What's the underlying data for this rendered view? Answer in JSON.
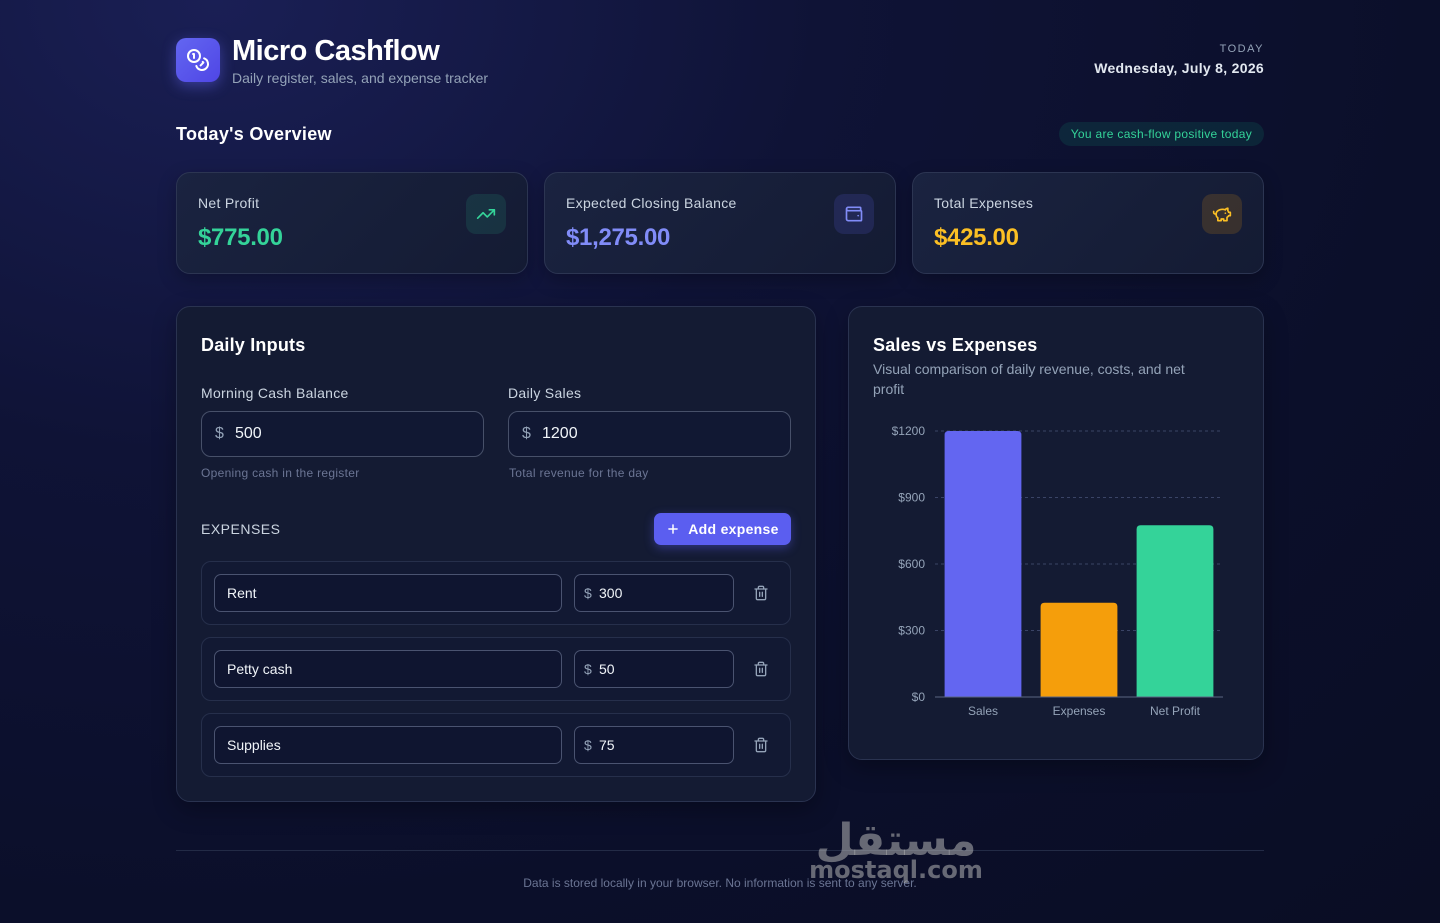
{
  "header": {
    "title": "Micro Cashflow",
    "subtitle": "Daily register, sales, and expense tracker",
    "today_label": "TODAY",
    "today_date": "Wednesday, July 8, 2026",
    "logo_icon": "coins-icon"
  },
  "overview": {
    "title": "Today's Overview",
    "badge": "You are cash-flow positive today",
    "cards": [
      {
        "label": "Net Profit",
        "value": "$775.00",
        "icon": "trending-up-icon",
        "color": "#34d399"
      },
      {
        "label": "Expected Closing Balance",
        "value": "$1,275.00",
        "icon": "wallet-icon",
        "color": "#818cf8"
      },
      {
        "label": "Total Expenses",
        "value": "$425.00",
        "icon": "piggy-bank-icon",
        "color": "#fbbf24"
      }
    ]
  },
  "inputs": {
    "title": "Daily Inputs",
    "morning": {
      "label": "Morning Cash Balance",
      "currency": "$",
      "value": "500",
      "hint": "Opening cash in the register"
    },
    "sales": {
      "label": "Daily Sales",
      "currency": "$",
      "value": "1200",
      "hint": "Total revenue for the day"
    },
    "expenses_heading": "EXPENSES",
    "add_button": "Add expense",
    "expenses": [
      {
        "name": "Rent",
        "currency": "$",
        "amount": "300"
      },
      {
        "name": "Petty cash",
        "currency": "$",
        "amount": "50"
      },
      {
        "name": "Supplies",
        "currency": "$",
        "amount": "75"
      }
    ]
  },
  "chart_panel": {
    "title": "Sales vs Expenses",
    "subtitle": "Visual comparison of daily revenue, costs, and net profit"
  },
  "chart_data": {
    "type": "bar",
    "categories": [
      "Sales",
      "Expenses",
      "Net Profit"
    ],
    "values": [
      1200,
      425,
      775
    ],
    "colors": [
      "#6366f1",
      "#f59e0b",
      "#34d399"
    ],
    "ylim": [
      0,
      1200
    ],
    "yticks": [
      0,
      300,
      600,
      900,
      1200
    ],
    "ytick_labels": [
      "$0",
      "$300",
      "$600",
      "$900",
      "$1200"
    ],
    "grid": true,
    "title": "",
    "xlabel": "",
    "ylabel": ""
  },
  "footer": {
    "text": "Data is stored locally in your browser. No information is sent to any server.",
    "watermark_ar": "مستقل",
    "watermark_latin": "mostaql.com"
  }
}
